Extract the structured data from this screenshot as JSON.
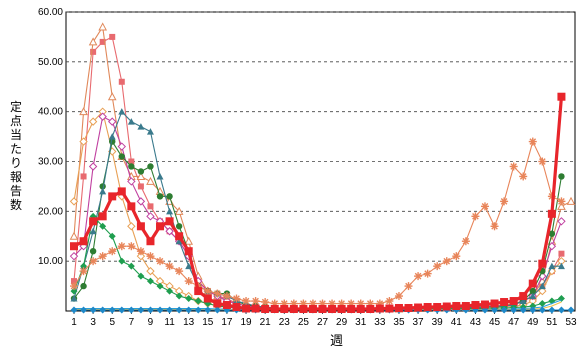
{
  "chart_data": {
    "type": "line",
    "xlabel": "週",
    "ylabel": "定点当たり報告数",
    "ylim": [
      0,
      60
    ],
    "y_ticks": [
      "10.00",
      "20.00",
      "30.00",
      "40.00",
      "50.00",
      "60.00"
    ],
    "x_ticks": [
      1,
      3,
      5,
      7,
      9,
      11,
      13,
      15,
      17,
      19,
      21,
      23,
      25,
      27,
      29,
      31,
      33,
      35,
      37,
      39,
      41,
      43,
      45,
      47,
      49,
      51,
      53
    ],
    "grid": "horizontal dashed",
    "series": [
      {
        "color": "#e8252b",
        "marker": "square",
        "emphasis": true,
        "values": [
          13,
          14,
          18,
          19,
          23,
          24,
          21,
          17,
          14,
          17,
          18,
          15,
          12,
          4,
          2.5,
          1.5,
          1.2,
          0.8,
          0.5,
          0.5,
          0.4,
          0.4,
          0.4,
          0.4,
          0.4,
          0.4,
          0.4,
          0.4,
          0.4,
          0.4,
          0.4,
          0.4,
          0.5,
          0.5,
          0.6,
          0.6,
          0.7,
          0.8,
          0.8,
          0.9,
          1,
          1,
          1.2,
          1.3,
          1.5,
          1.8,
          2,
          3,
          5.5,
          9.5,
          19.5,
          43
        ]
      },
      {
        "color": "#e86a6f",
        "marker": "square",
        "values": [
          6,
          27,
          52,
          54,
          55,
          46,
          30,
          25,
          21,
          18,
          16,
          14,
          11,
          6,
          4,
          3,
          2.5,
          1.5,
          1,
          0.8,
          0.6,
          0.5,
          0.5,
          0.4,
          0.4,
          0.4,
          0.4,
          0.4,
          0.4,
          0.4,
          0.4,
          0.4,
          0.4,
          0.4,
          0.4,
          0.5,
          0.5,
          0.5,
          0.6,
          0.6,
          0.7,
          0.7,
          0.8,
          0.9,
          1,
          1.2,
          1.5,
          2,
          3,
          5,
          8,
          11.5
        ]
      },
      {
        "color": "#e0885a",
        "marker": "triangle-open",
        "values": [
          15,
          40,
          54,
          57,
          43,
          31,
          27,
          27,
          26,
          24,
          22,
          20,
          14,
          7,
          4,
          3,
          2,
          1.5,
          1,
          0.8,
          0.6,
          0.5,
          0.5,
          0.4,
          0.4,
          0.4,
          0.4,
          0.4,
          0.4,
          0.4,
          0.4,
          0.4,
          0.4,
          0.4,
          0.4,
          0.5,
          0.5,
          0.5,
          0.6,
          0.6,
          0.7,
          0.7,
          0.8,
          0.8,
          1,
          1.2,
          1.5,
          2,
          3,
          6,
          14,
          21,
          22
        ]
      },
      {
        "color": "#e8a055",
        "marker": "diamond-open",
        "values": [
          22,
          34,
          38,
          40,
          32,
          23,
          17,
          11,
          8,
          6,
          5,
          4,
          3,
          2,
          1.5,
          1,
          1,
          0.8,
          0.6,
          0.5,
          0.5,
          0.4,
          0.4,
          0.4,
          0.4,
          0.4,
          0.4,
          0.4,
          0.4,
          0.4,
          0.4,
          0.4,
          0.4,
          0.4,
          0.4,
          0.5,
          0.5,
          0.5,
          0.5,
          0.5,
          0.6,
          0.6,
          0.7,
          0.7,
          0.8,
          0.9,
          1,
          1.2,
          2,
          4,
          8,
          10
        ]
      },
      {
        "color": "#c040a0",
        "marker": "diamond-open",
        "values": [
          11,
          13,
          29,
          39,
          38,
          33,
          26,
          22,
          19,
          18,
          16,
          14,
          11,
          6,
          4,
          3,
          2,
          1.5,
          1,
          0.8,
          0.6,
          0.5,
          0.5,
          0.4,
          0.4,
          0.4,
          0.4,
          0.4,
          0.4,
          0.4,
          0.4,
          0.4,
          0.4,
          0.4,
          0.4,
          0.5,
          0.5,
          0.5,
          0.5,
          0.6,
          0.6,
          0.7,
          0.7,
          0.8,
          0.9,
          1,
          1.2,
          2,
          3,
          7,
          13,
          18
        ]
      },
      {
        "color": "#2e7d32",
        "marker": "circle",
        "values": [
          2.5,
          5,
          12,
          25,
          34,
          31,
          29,
          28,
          29,
          23,
          23,
          17,
          12,
          5,
          4,
          3.5,
          3.5,
          2,
          1.2,
          1,
          0.8,
          0.6,
          0.5,
          0.5,
          0.4,
          0.4,
          0.4,
          0.4,
          0.4,
          0.4,
          0.4,
          0.4,
          0.4,
          0.4,
          0.4,
          0.5,
          0.5,
          0.5,
          0.5,
          0.6,
          0.6,
          0.7,
          0.7,
          0.8,
          0.9,
          1,
          1.3,
          2,
          4,
          8,
          15.5,
          27
        ]
      },
      {
        "color": "#3a7a8c",
        "marker": "triangle",
        "values": [
          2.5,
          9,
          16,
          24,
          35,
          40,
          38,
          37,
          36,
          27,
          20,
          14,
          9,
          5,
          4,
          3.5,
          3,
          2,
          1.5,
          1,
          0.8,
          0.6,
          0.5,
          0.5,
          0.4,
          0.4,
          0.4,
          0.4,
          0.4,
          0.4,
          0.4,
          0.4,
          0.4,
          0.4,
          0.4,
          0.5,
          0.5,
          0.5,
          0.5,
          0.5,
          0.6,
          0.6,
          0.7,
          0.8,
          0.9,
          1,
          1.2,
          2,
          3,
          5,
          9,
          9
        ]
      },
      {
        "color": "#1f9e4f",
        "marker": "diamond",
        "values": [
          4,
          9,
          19,
          17,
          15,
          10,
          9,
          7,
          6,
          5,
          4,
          3,
          2.5,
          2,
          1.5,
          1,
          0.8,
          0.6,
          0.5,
          0.5,
          0.4,
          0.4,
          0.4,
          0.4,
          0.4,
          0.4,
          0.4,
          0.4,
          0.4,
          0.4,
          0.4,
          0.4,
          0.4,
          0.4,
          0.4,
          0.4,
          0.4,
          0.4,
          0.4,
          0.5,
          0.5,
          0.5,
          0.5,
          0.5,
          0.6,
          0.6,
          0.7,
          0.8,
          1,
          1.5,
          2,
          2.5
        ]
      },
      {
        "color": "#e8855a",
        "marker": "asterisk",
        "values": [
          5,
          8,
          10,
          11,
          12,
          13,
          13,
          12,
          11,
          10,
          9,
          8,
          6,
          5,
          4,
          3.5,
          3,
          2.5,
          2,
          2,
          1.8,
          1.5,
          1.5,
          1.5,
          1.5,
          1.5,
          1.5,
          1.5,
          1.5,
          1.5,
          1.5,
          1.5,
          1.5,
          2,
          3,
          5,
          7,
          7.5,
          9,
          10,
          11,
          14,
          19,
          21,
          17,
          22,
          29,
          27,
          34,
          30,
          23,
          22
        ]
      },
      {
        "color": "#2aa0d8",
        "marker": "none",
        "values": [
          0.5,
          0.5,
          0.5,
          0.5,
          0.5,
          0.5,
          0.5,
          0.5,
          0.5,
          0.5,
          0.5,
          0.5,
          0.5,
          0.5,
          0.5,
          0.4,
          0.4,
          0.3,
          0.3,
          0.3,
          0.3,
          0.3,
          0.3,
          0.3,
          0.3,
          0.3,
          0.3,
          0.3,
          0.3,
          0.3,
          0.3,
          0.3,
          0.3,
          0.3,
          0.3,
          0.3,
          0.3,
          0.3,
          0.3,
          0.3,
          0.3,
          0.3,
          0.3,
          0.3,
          0.3,
          0.3,
          0.4,
          0.5,
          0.6,
          0.8,
          1.5,
          2.2
        ]
      },
      {
        "color": "#f2c24a",
        "marker": "none",
        "values": [
          0.3,
          0.3,
          0.3,
          0.3,
          0.3,
          0.3,
          0.3,
          0.3,
          0.3,
          0.3,
          0.3,
          0.3,
          0.3,
          0.3,
          0.3,
          0.3,
          0.3,
          0.3,
          0.3,
          0.3,
          0.3,
          0.3,
          0.3,
          0.3,
          0.3,
          0.3,
          0.3,
          0.3,
          0.3,
          0.3,
          0.3,
          0.3,
          0.3,
          0.3,
          0.3,
          0.3,
          0.3,
          0.3,
          0.3,
          0.3,
          0.3,
          0.3,
          0.3,
          0.3,
          0.3,
          0.3,
          0.3,
          0.3,
          0.4,
          0.5,
          1,
          1.8
        ]
      },
      {
        "color": "#1e88c8",
        "marker": "diamond",
        "values": [
          0.2,
          0.2,
          0.2,
          0.2,
          0.2,
          0.2,
          0.2,
          0.2,
          0.2,
          0.2,
          0.2,
          0.2,
          0.2,
          0.2,
          0.2,
          0.2,
          0.2,
          0.2,
          0.2,
          0.2,
          0.2,
          0.2,
          0.2,
          0.2,
          0.2,
          0.2,
          0.2,
          0.2,
          0.2,
          0.2,
          0.2,
          0.2,
          0.2,
          0.2,
          0.2,
          0.2,
          0.2,
          0.2,
          0.2,
          0.2,
          0.2,
          0.2,
          0.2,
          0.2,
          0.2,
          0.2,
          0.2,
          0.2,
          0.2,
          0.2,
          0.2,
          0.2,
          0.2
        ]
      }
    ]
  }
}
